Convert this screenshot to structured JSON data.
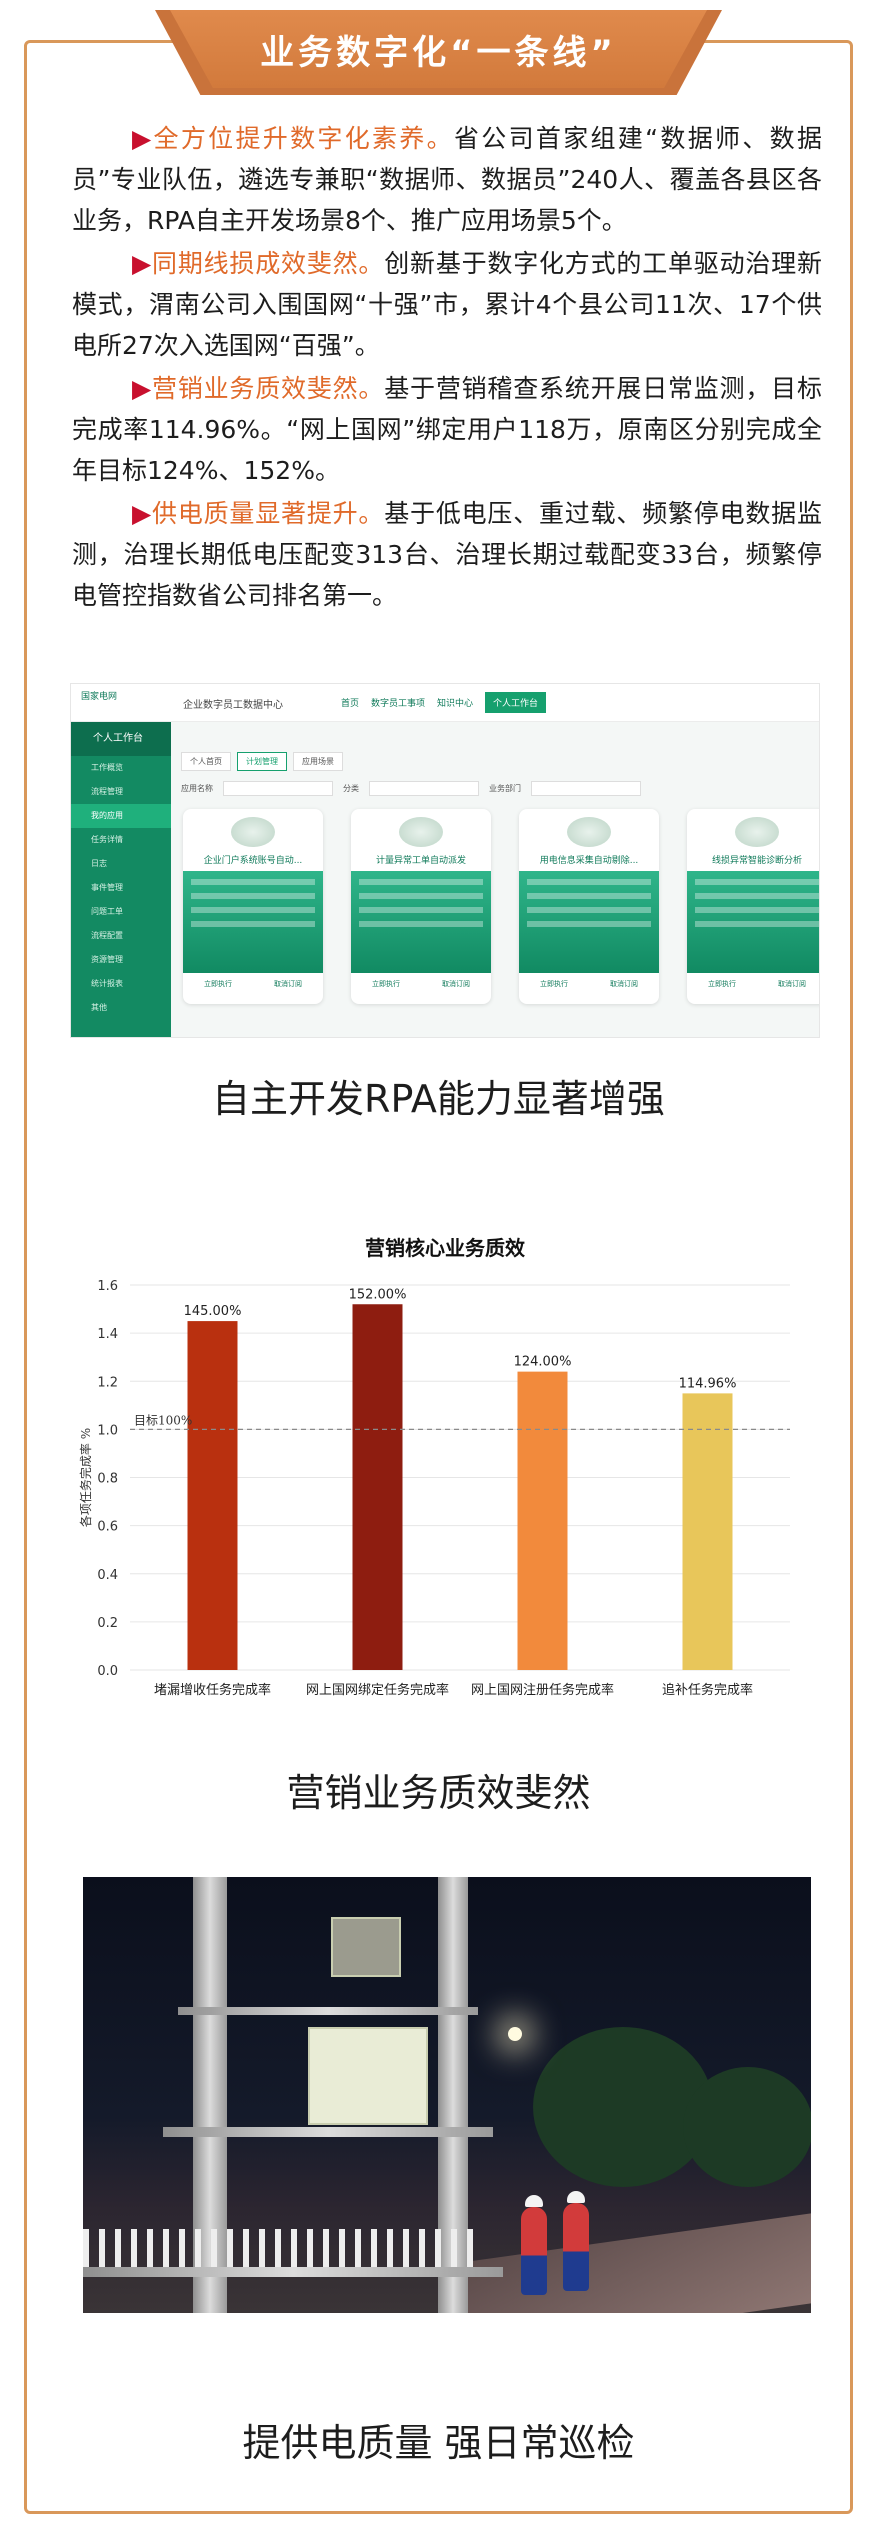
{
  "header": {
    "title": "业务数字化“一条线”"
  },
  "paragraphs": [
    {
      "marker": "▶",
      "highlight": "全方位提升数字化素养。",
      "body": "省公司首家组建“数据师、数据员”专业队伍，遴选专兼职“数据师、数据员”240人、覆盖各县区各业务，RPA自主开发场景8个、推广应用场景5个。"
    },
    {
      "marker": "▶",
      "highlight": "同期线损成效斐然。",
      "body": "创新基于数字化方式的工单驱动治理新模式，渭南公司入围国网“十强”市，累计4个县公司11次、17个供电所27次入选国网“百强”。"
    },
    {
      "marker": "▶",
      "highlight": "营销业务质效斐然。",
      "body": "基于营销稽查系统开展日常监测，目标完成率114.96%。“网上国网”绑定用户118万，原南区分别完成全年目标124%、152%。"
    },
    {
      "marker": "▶",
      "highlight": "供电质量显著提升。",
      "body": "基于低电压、重过载、频繁停电数据监测，治理长期低电压配变313台、治理长期过载配变33台，频繁停电管控指数省公司排名第一。"
    }
  ],
  "screenshot": {
    "logo_text": "国家电网",
    "app_title": "企业数字员工数据中心",
    "nav": [
      "首页",
      "数字员工事项",
      "知识中心",
      "个人工作台"
    ],
    "side_title": "个人工作台",
    "side_items": [
      "工作概览",
      "流程管理",
      "我的应用",
      "任务详情",
      "日志",
      "事件管理",
      "问题工单",
      "流程配置",
      "资源管理",
      "统计报表",
      "其他"
    ],
    "tabs": [
      "个人首页",
      "计划管理",
      "应用场景"
    ],
    "filters": [
      "应用名称",
      "分类",
      "业务部门"
    ],
    "cards": [
      {
        "name": "企业门户系统账号自动...",
        "foot": [
          "立即执行",
          "取消订阅"
        ]
      },
      {
        "name": "计量异常工单自动派发",
        "foot": [
          "立即执行",
          "取消订阅"
        ]
      },
      {
        "name": "用电信息采集自动剔除...",
        "foot": [
          "立即执行",
          "取消订阅"
        ]
      },
      {
        "name": "线损异常智能诊断分析",
        "foot": [
          "立即执行",
          "取消订阅"
        ]
      }
    ]
  },
  "captions": {
    "rpa": "自主开发RPA能力显著增强",
    "marketing": "营销业务质效斐然",
    "patrol": "提供电质量  强日常巡检"
  },
  "colors": {
    "accent": "#d27a3c",
    "highlight": "#e06a2a",
    "marker": "#c8102e",
    "frame": "#d9985a"
  },
  "chart_data": {
    "type": "bar",
    "title": "营销核心业务质效",
    "ylabel": "各项任务完成率 %",
    "xlabel": "",
    "categories": [
      "堵漏增收任务完成率",
      "网上国网绑定任务完成率",
      "网上国网注册任务完成率",
      "追补任务完成率"
    ],
    "values": [
      1.45,
      1.52,
      1.24,
      1.1496
    ],
    "data_labels": [
      "145.00%",
      "152.00%",
      "124.00%",
      "114.96%"
    ],
    "bar_colors": [
      "#b9300f",
      "#8e1d10",
      "#f28a3c",
      "#e8c65a"
    ],
    "ylim": [
      0,
      1.6
    ],
    "yticks": [
      "0.0",
      "0.2",
      "0.4",
      "0.6",
      "0.8",
      "1.0",
      "1.2",
      "1.4",
      "1.6"
    ],
    "reference_line": {
      "value": 1.0,
      "label": "目标100%"
    },
    "grid": true
  }
}
